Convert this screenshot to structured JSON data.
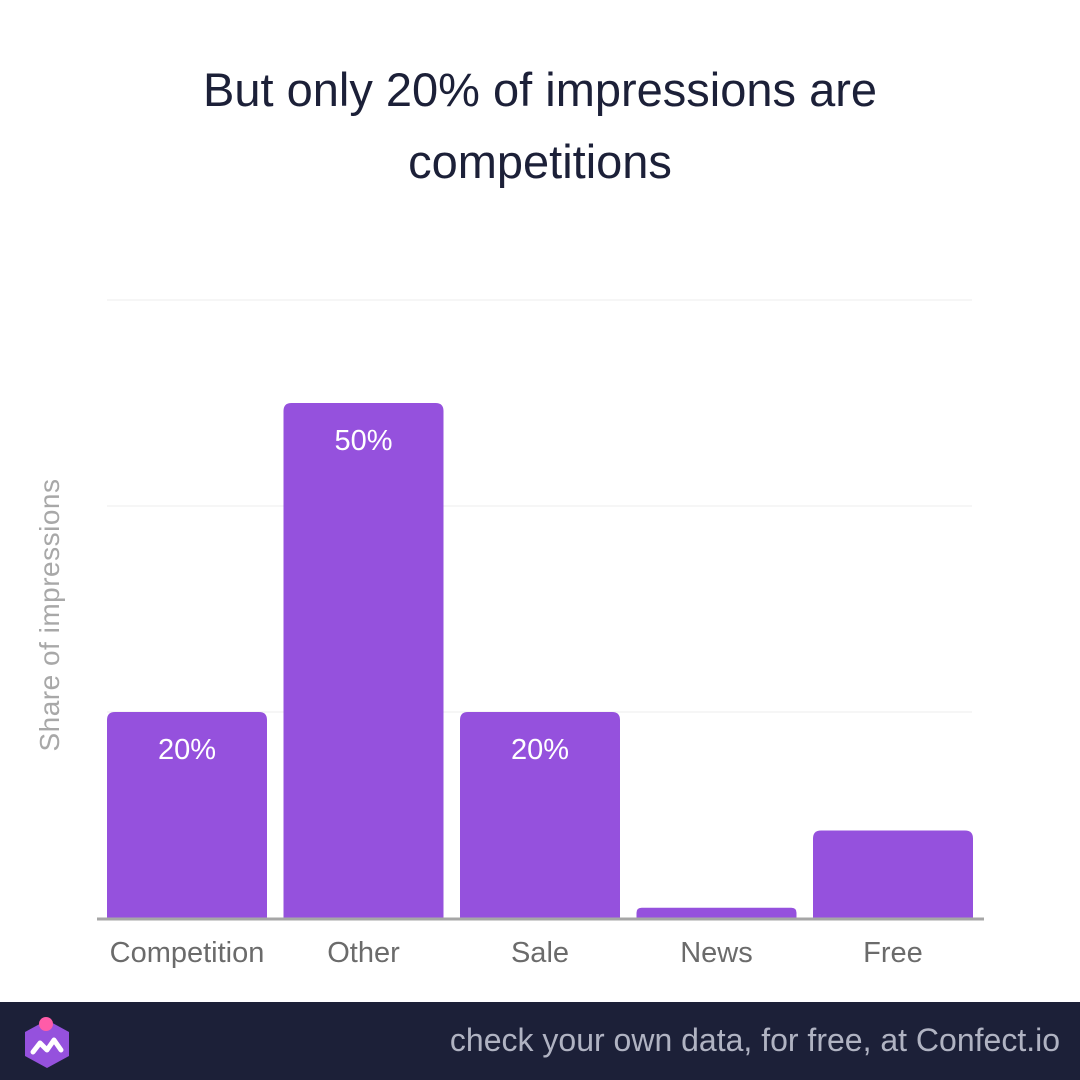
{
  "title": "But only 20% of impressions are competitions",
  "footer": {
    "tagline": "check your own data, for free, at Confect.io",
    "logo_icon": "confect-logo-icon"
  },
  "colors": {
    "bar": "#9551dd",
    "title": "#1c2038",
    "footer_bg": "#1c2038",
    "axis_label": "#a8a8a8",
    "tick_label": "#6b6b6b",
    "baseline": "#a6a6a6",
    "grid": "#ececec",
    "logo_pink": "#ff5ca8"
  },
  "chart_data": {
    "type": "bar",
    "title": "But only 20% of impressions are competitions",
    "xlabel": "",
    "ylabel": "Share of impressions",
    "categories": [
      "Competition",
      "Other",
      "Sale",
      "News",
      "Free"
    ],
    "values": [
      20,
      50,
      20,
      1,
      8.5
    ],
    "data_labels": [
      "20%",
      "50%",
      "20%",
      "",
      ""
    ],
    "ylim": [
      0,
      60
    ],
    "grid": true,
    "legend": "none"
  }
}
